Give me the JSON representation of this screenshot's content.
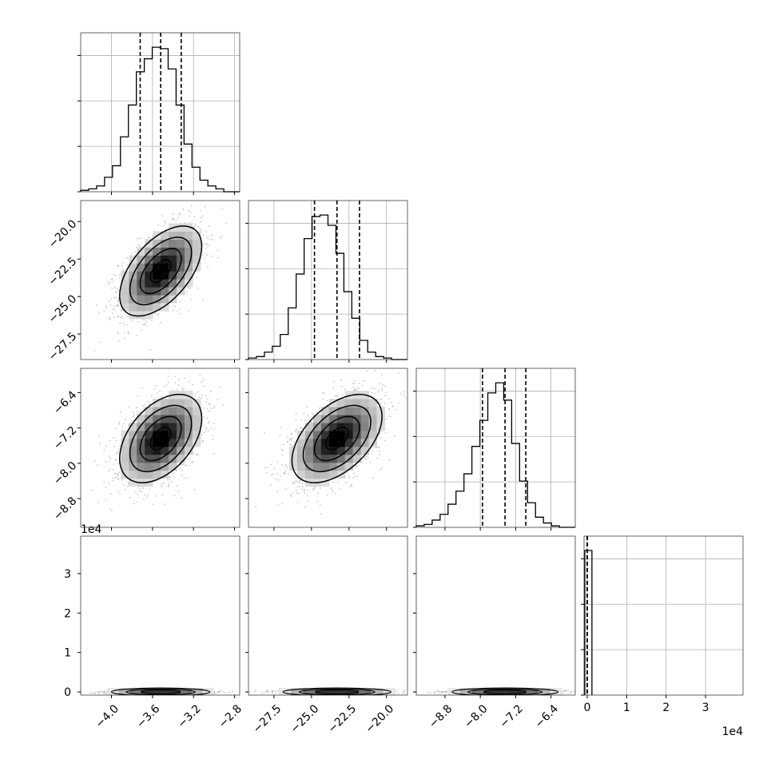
{
  "chart_data": {
    "type": "corner",
    "grid": true,
    "parameters": [
      {
        "range": [
          -4.3,
          -2.75
        ],
        "ticks": [
          -4.0,
          -3.6,
          -3.2,
          -2.8
        ],
        "tick_labels": [
          "−4.0",
          "−3.6",
          "−3.2",
          "−2.8"
        ],
        "quantiles": [
          -3.72,
          -3.52,
          -3.32
        ],
        "offset_label": ""
      },
      {
        "range": [
          -29.2,
          -18.6
        ],
        "ticks": [
          -27.5,
          -25.0,
          -22.5,
          -20.0
        ],
        "tick_labels": [
          "−27.5",
          "−25.0",
          "−22.5",
          "−20.0"
        ],
        "quantiles": [
          -24.8,
          -23.3,
          -21.8
        ],
        "offset_label": ""
      },
      {
        "range": [
          -9.45,
          -5.85
        ],
        "ticks": [
          -8.8,
          -8.0,
          -7.2,
          -6.4
        ],
        "tick_labels": [
          "−8.8",
          "−8.0",
          "−7.2",
          "−6.4"
        ],
        "quantiles": [
          -7.95,
          -7.44,
          -6.97
        ],
        "offset_label": ""
      },
      {
        "range": [
          -800,
          39500
        ],
        "ticks": [
          0,
          10000,
          20000,
          30000
        ],
        "tick_labels": [
          "0",
          "1",
          "2",
          "3"
        ],
        "quantiles": [
          0,
          0,
          0
        ],
        "offset_label": "1e4"
      }
    ],
    "diag_histograms": [
      {
        "bins": 20,
        "counts": [
          1,
          2,
          4,
          10,
          18,
          38,
          60,
          83,
          92,
          100,
          99,
          85,
          60,
          33,
          17,
          8,
          4,
          2,
          0,
          0
        ]
      },
      {
        "bins": 20,
        "counts": [
          1,
          2,
          5,
          9,
          17,
          35,
          58,
          82,
          97,
          98,
          91,
          72,
          46,
          28,
          13,
          5,
          2,
          1,
          0,
          0
        ]
      },
      {
        "bins": 20,
        "counts": [
          1,
          2,
          5,
          9,
          16,
          25,
          37,
          56,
          74,
          93,
          100,
          88,
          58,
          32,
          17,
          7,
          3,
          1,
          0,
          0
        ]
      },
      {
        "bins": 20,
        "counts": [
          100,
          0,
          0,
          0,
          0,
          0,
          0,
          0,
          0,
          0,
          0,
          0,
          0,
          0,
          0,
          0,
          0,
          0,
          0,
          0
        ]
      }
    ],
    "sample_model": {
      "means": [
        -3.52,
        -23.3,
        -7.44,
        800
      ],
      "stds": [
        0.2,
        1.5,
        0.5,
        900
      ],
      "correlations": {
        "0-1": 0.55,
        "0-2": 0.45,
        "1-2": 0.5
      }
    }
  }
}
